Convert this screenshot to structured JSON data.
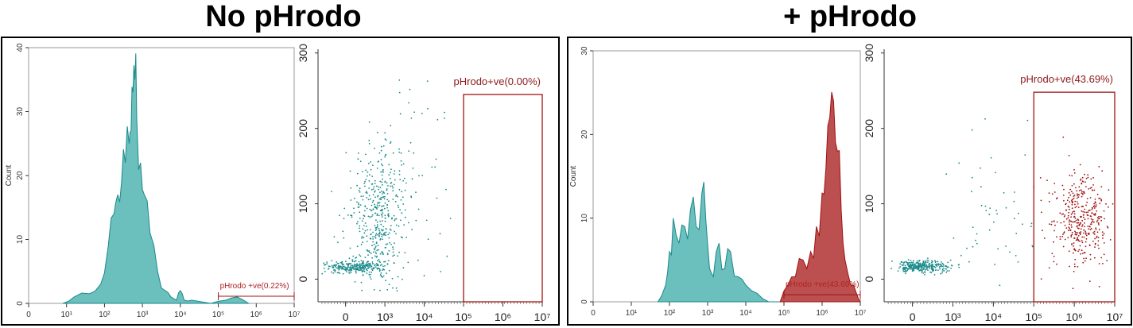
{
  "panels": [
    {
      "title": "No pHrodo"
    },
    {
      "title": "+ pHrodo"
    }
  ],
  "colors": {
    "teal": "#1a8a8a",
    "teal_fill": "#6bbfbd",
    "red": "#a01212",
    "red_fill": "#b03030"
  },
  "chart_data": [
    {
      "type": "area",
      "panel": "No pHrodo",
      "plot": "histogram",
      "ylabel": "Count",
      "ylim": [
        0,
        40
      ],
      "yticks": [
        "0",
        "10",
        "20",
        "30",
        "40"
      ],
      "xlim": [
        0,
        7
      ],
      "xticks": [
        "0",
        "10¹",
        "10²",
        "10³",
        "10⁴",
        "10⁵",
        "10⁶",
        "10⁷"
      ],
      "series": [
        {
          "x": [
            0.9,
            1.2,
            1.6,
            1.9,
            2.1,
            2.25,
            2.35,
            2.45,
            2.55,
            2.65,
            2.7,
            2.75,
            2.8,
            2.85,
            2.95,
            3.05,
            3.2,
            3.4,
            3.6,
            3.75,
            3.9,
            4.0,
            4.1,
            4.3,
            4.8,
            5.2,
            5.5,
            5.8
          ],
          "y": [
            0,
            1,
            1.5,
            3,
            9,
            14,
            17,
            19,
            22,
            25,
            27,
            33,
            35,
            29,
            22,
            17,
            11,
            5,
            2,
            1,
            0.5,
            2,
            0.5,
            0.5,
            0,
            0.5,
            1,
            0
          ]
        }
      ],
      "gate": {
        "label": "pHrodo +ve(0.22%)",
        "x_range": [
          5,
          7
        ],
        "percent": 0.22
      }
    },
    {
      "type": "scatter",
      "panel": "No pHrodo",
      "plot": "dot-plot",
      "ylim": [
        0,
        300
      ],
      "yticks": [
        "0",
        "100",
        "200",
        "300"
      ],
      "xticks": [
        "0",
        "10³",
        "10⁴",
        "10⁵",
        "10⁶",
        "10⁷"
      ],
      "populations": [
        {
          "name": "main",
          "center_x": 2.8,
          "center_y": 75,
          "spread_x": 0.35,
          "spread_y": 45,
          "n": 420
        },
        {
          "name": "baseline",
          "center_x": 2.2,
          "center_y": 16,
          "spread_x": 0.35,
          "spread_y": 4,
          "n": 260
        },
        {
          "name": "sparse",
          "center_x": 3.4,
          "center_y": 150,
          "spread_x": 0.6,
          "spread_y": 70,
          "n": 80
        }
      ],
      "gate": {
        "label": "pHrodo+ve(0.00%)",
        "x_range": [
          5,
          7
        ],
        "y_range": [
          -30,
          245
        ],
        "percent": 0.0
      }
    },
    {
      "type": "area",
      "panel": "+ pHrodo",
      "plot": "histogram",
      "ylabel": "Count",
      "ylim": [
        0,
        30
      ],
      "yticks": [
        "0",
        "10",
        "20",
        "30"
      ],
      "xlim": [
        0,
        7
      ],
      "xticks": [
        "0",
        "10¹",
        "10²",
        "10³",
        "10⁴",
        "10⁵",
        "10⁶",
        "10⁷"
      ],
      "series": [
        {
          "x": [
            1.7,
            1.9,
            2.0,
            2.1,
            2.25,
            2.4,
            2.55,
            2.7,
            2.85,
            2.95,
            3.05,
            3.15,
            3.3,
            3.45,
            3.6,
            3.8,
            4.0,
            4.3,
            4.6,
            5.0
          ],
          "y": [
            0,
            2,
            6,
            10,
            7,
            9,
            11,
            9,
            13,
            10,
            4,
            3,
            7,
            4,
            6,
            3,
            2,
            1,
            0,
            0
          ]
        },
        {
          "x": [
            4.9,
            5.1,
            5.3,
            5.5,
            5.7,
            5.85,
            6.0,
            6.1,
            6.2,
            6.3,
            6.4,
            6.5,
            6.6,
            6.75,
            6.9,
            7.0
          ],
          "y": [
            0,
            2,
            3,
            5,
            6,
            9,
            13,
            16,
            22,
            24,
            18,
            11,
            5,
            2,
            1,
            0
          ]
        }
      ],
      "gate": {
        "label": "pHrodo +ve(43.69%)",
        "x_range": [
          5,
          7
        ],
        "percent": 43.69
      }
    },
    {
      "type": "scatter",
      "panel": "+ pHrodo",
      "plot": "dot-plot",
      "ylim": [
        0,
        300
      ],
      "yticks": [
        "0",
        "100",
        "200",
        "300"
      ],
      "xticks": [
        "0",
        "10³",
        "10⁴",
        "10⁵",
        "10⁶",
        "10⁷"
      ],
      "populations": [
        {
          "name": "baseline",
          "center_x": 2.2,
          "center_y": 17,
          "spread_x": 0.35,
          "spread_y": 4,
          "n": 300
        },
        {
          "name": "mid",
          "center_x": 4.2,
          "center_y": 90,
          "spread_x": 0.7,
          "spread_y": 55,
          "n": 60
        },
        {
          "name": "positive",
          "center_x": 6.2,
          "center_y": 80,
          "spread_x": 0.35,
          "spread_y": 30,
          "n": 380
        }
      ],
      "gate": {
        "label": "pHrodo+ve(43.69%)",
        "x_range": [
          5,
          7.1
        ],
        "y_range": [
          -30,
          248
        ],
        "percent": 43.69
      }
    }
  ]
}
